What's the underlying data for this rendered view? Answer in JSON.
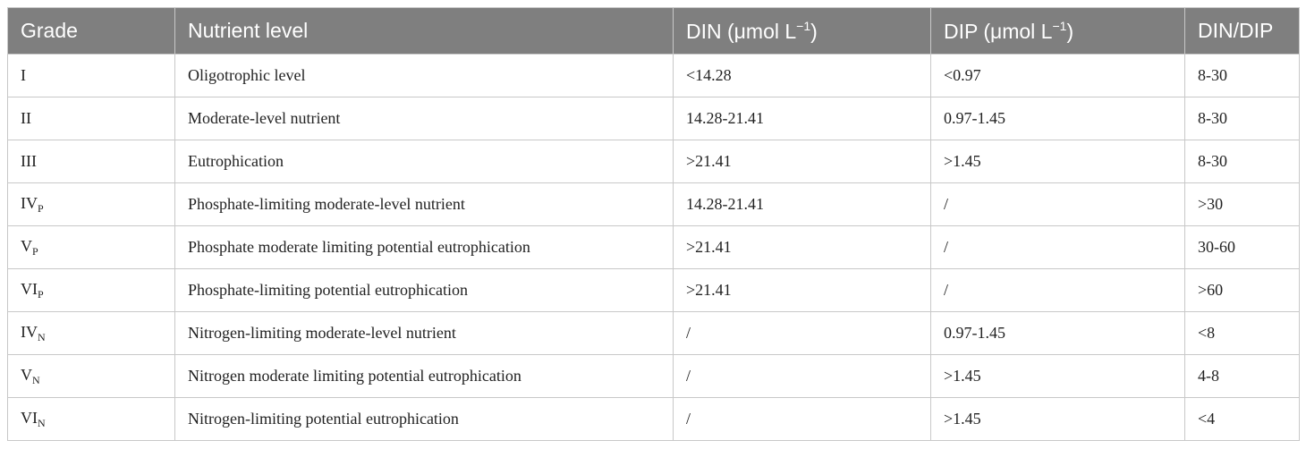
{
  "table": {
    "header": [
      "Grade",
      "Nutrient level",
      {
        "before": "DIN (μmol L",
        "sup": "−1",
        "after": ")"
      },
      {
        "before": "DIP (μmol L",
        "sup": "−1",
        "after": ")"
      },
      "DIN/DIP"
    ],
    "rows": [
      [
        "I",
        "Oligotrophic level",
        "<14.28",
        "<0.97",
        "8-30"
      ],
      [
        "II",
        "Moderate-level nutrient",
        "14.28-21.41",
        "0.97-1.45",
        "8-30"
      ],
      [
        "III",
        "Eutrophication",
        ">21.41",
        ">1.45",
        "8-30"
      ],
      [
        {
          "main": "IV",
          "sub": "P"
        },
        "Phosphate-limiting moderate-level nutrient",
        "14.28-21.41",
        "/",
        ">30"
      ],
      [
        {
          "main": "V",
          "sub": "P"
        },
        "Phosphate moderate limiting potential eutrophication",
        ">21.41",
        "/",
        "30-60"
      ],
      [
        {
          "main": "VI",
          "sub": "P"
        },
        "Phosphate-limiting potential eutrophication",
        ">21.41",
        "/",
        ">60"
      ],
      [
        {
          "main": "IV",
          "sub": "N"
        },
        "Nitrogen-limiting moderate-level nutrient",
        "/",
        "0.97-1.45",
        "<8"
      ],
      [
        {
          "main": "V",
          "sub": "N"
        },
        "Nitrogen moderate limiting potential eutrophication",
        "/",
        ">1.45",
        "4-8"
      ],
      [
        {
          "main": "VI",
          "sub": "N"
        },
        "Nitrogen-limiting potential eutrophication",
        "/",
        ">1.45",
        "<4"
      ]
    ]
  }
}
